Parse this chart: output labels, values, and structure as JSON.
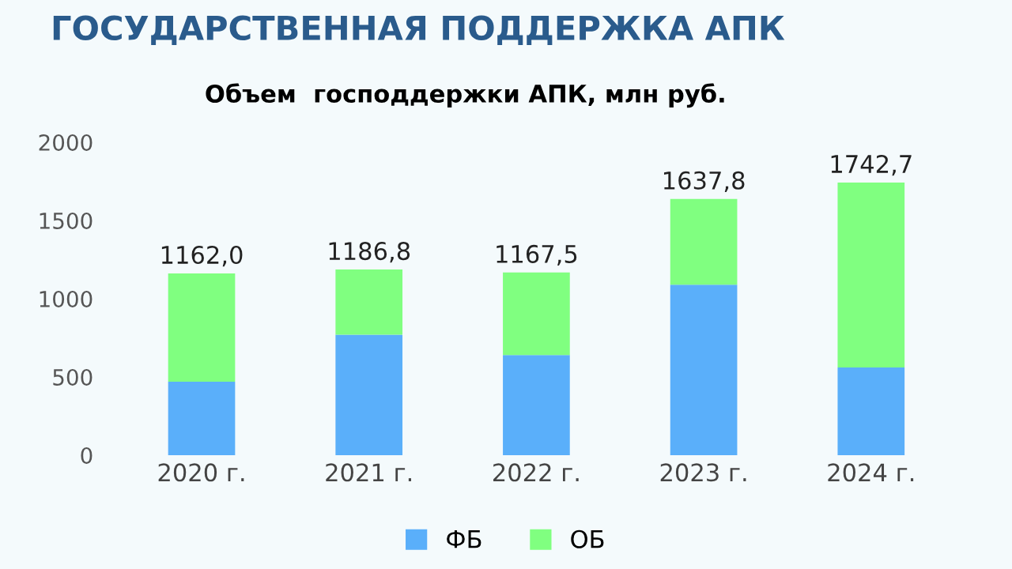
{
  "chart_data": {
    "type": "bar",
    "title": "ГОСУДАРСТВЕННАЯ ПОДДЕРЖКА АПК",
    "subtitle": "Объем  господдержки АПК, млн руб.",
    "categories": [
      "2020 г.",
      "2021 г.",
      "2022 г.",
      "2023 г.",
      "2024 г."
    ],
    "series": [
      {
        "name": "ФБ",
        "color": "#5aaffa",
        "values": [
          470,
          770,
          640,
          1090,
          560
        ]
      },
      {
        "name": "ОБ",
        "color": "#80ff80",
        "values": [
          692.0,
          416.8,
          527.5,
          547.8,
          1182.7
        ]
      }
    ],
    "stacked": true,
    "totals": [
      "1162,0",
      "1186,8",
      "1167,5",
      "1637,8",
      "1742,7"
    ],
    "ylim": [
      0,
      2000
    ],
    "yticks": [
      0,
      500,
      1000,
      1500,
      2000
    ],
    "legend": "bottom"
  }
}
